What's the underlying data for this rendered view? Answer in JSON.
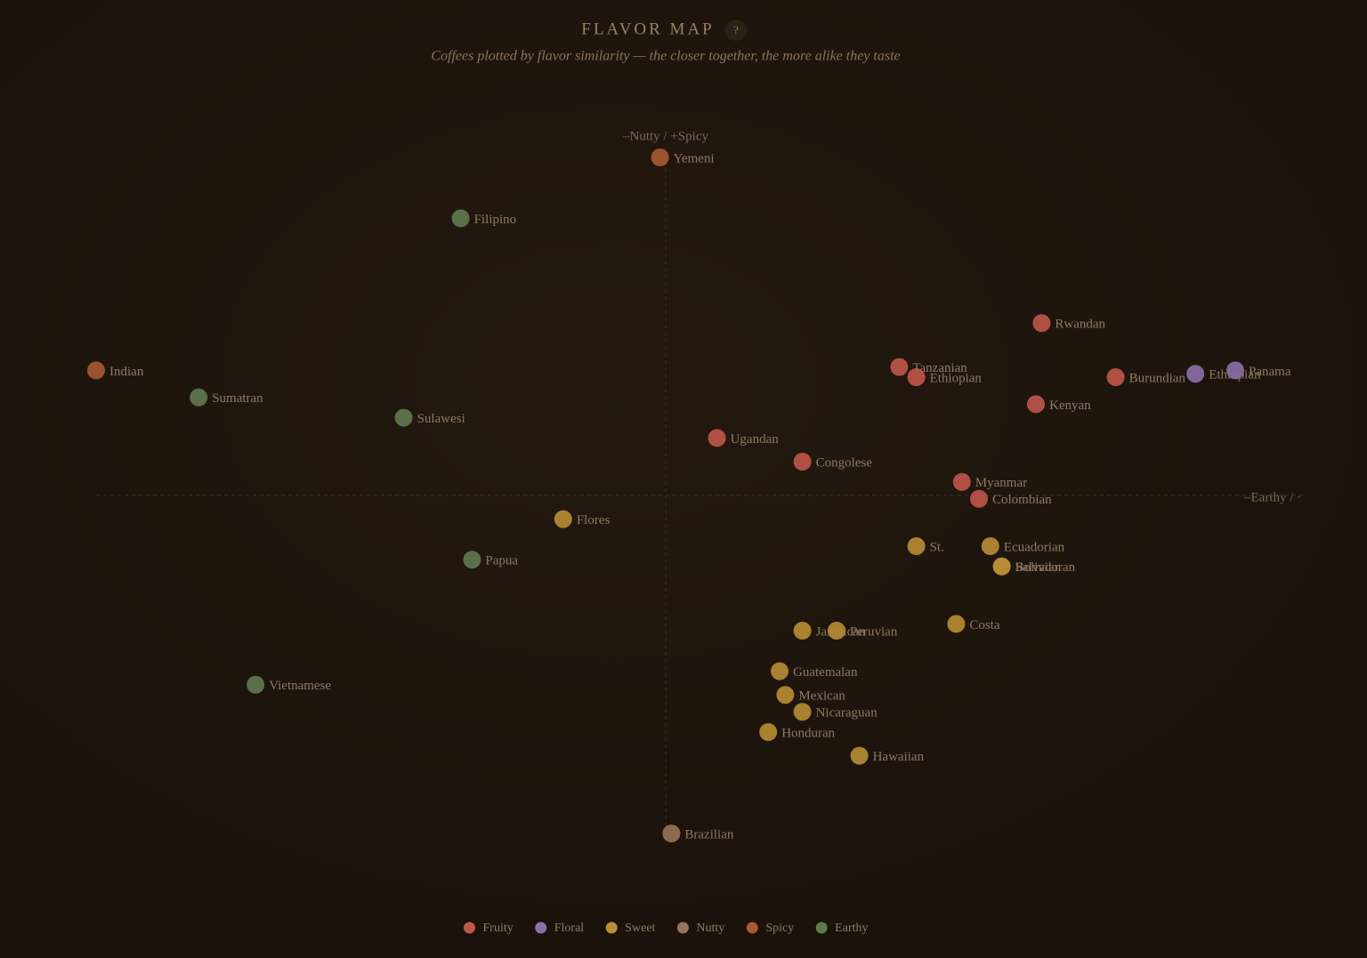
{
  "chart_data": {
    "type": "scatter",
    "title": "FLAVOR MAP",
    "help": "?",
    "subtitle": "Coffees plotted by flavor similarity — the closer together, the more alike they taste",
    "x_axis_label": "–Earthy / ·",
    "y_axis_label": "–Nutty / +Spicy",
    "xlim": [
      -1,
      1
    ],
    "ylim": [
      -1,
      1
    ],
    "series": [
      {
        "name": "Fruity",
        "color": "#c0574a",
        "labels": [
          "Rwandan",
          "Tanzanian",
          "Ethiopian",
          "Burundian",
          "Kenyan",
          "Ugandan",
          "Congolese",
          "Myanmar",
          "Colombian"
        ],
        "x": [
          0.66,
          0.41,
          0.44,
          0.79,
          0.65,
          0.09,
          0.24,
          0.52,
          0.55
        ],
        "values": [
          0.51,
          0.38,
          0.35,
          0.35,
          0.27,
          0.17,
          0.1,
          0.04,
          -0.01
        ]
      },
      {
        "name": "Floral",
        "color": "#8c6fa8",
        "labels": [
          "Ethiopian",
          "Panama"
        ],
        "x": [
          0.93,
          1.0
        ],
        "values": [
          0.36,
          0.37
        ]
      },
      {
        "name": "Sweet",
        "color": "#b88d35",
        "labels": [
          "Flores",
          "St.",
          "Ecuadorian",
          "Bolivian",
          "Salvadoran",
          "Costa",
          "Jamaican",
          "Peruvian",
          "Guatemalan",
          "Mexican",
          "Nicaraguan",
          "Honduran",
          "Hawaiian"
        ],
        "x": [
          -0.18,
          0.44,
          0.57,
          0.59,
          0.59,
          0.51,
          0.24,
          0.3,
          0.2,
          0.21,
          0.24,
          0.18,
          0.34
        ],
        "values": [
          -0.07,
          -0.15,
          -0.15,
          -0.21,
          -0.21,
          -0.38,
          -0.4,
          -0.4,
          -0.52,
          -0.59,
          -0.64,
          -0.7,
          -0.77
        ]
      },
      {
        "name": "Nutty",
        "color": "#9a7354",
        "labels": [
          "Brazilian"
        ],
        "x": [
          0.01
        ],
        "values": [
          -1.0
        ]
      },
      {
        "name": "Spicy",
        "color": "#a85a30",
        "labels": [
          "Yemeni",
          "Indian"
        ],
        "x": [
          -0.01,
          -1.0
        ],
        "values": [
          1.0,
          0.37
        ]
      },
      {
        "name": "Earthy",
        "color": "#607a4f",
        "labels": [
          "Filipino",
          "Sumatran",
          "Sulawesi",
          "Papua",
          "Vietnamese"
        ],
        "x": [
          -0.36,
          -0.82,
          -0.46,
          -0.34,
          -0.72
        ],
        "values": [
          0.82,
          0.29,
          0.23,
          -0.19,
          -0.56
        ]
      }
    ]
  }
}
